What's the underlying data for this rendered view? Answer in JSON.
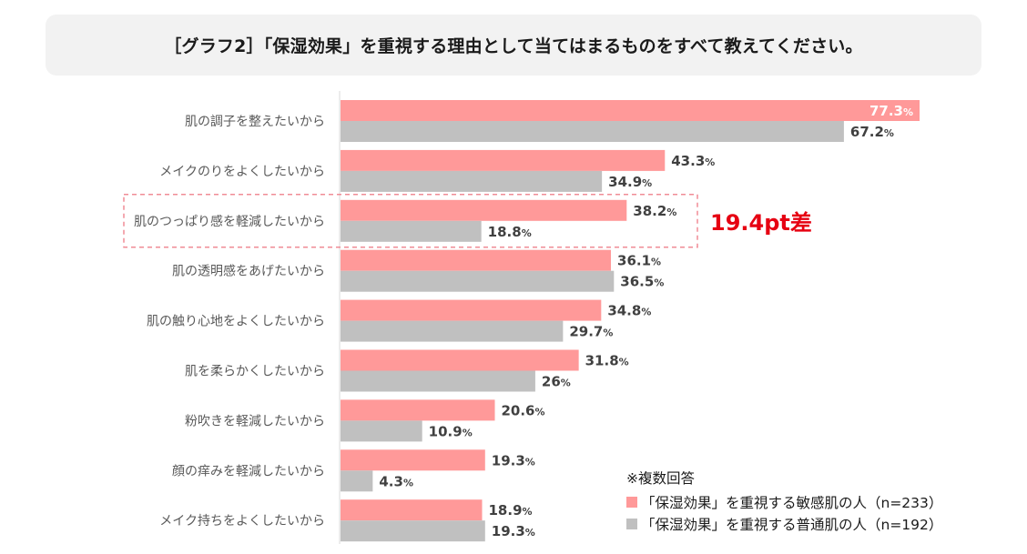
{
  "colors": {
    "sensitive": "#ff9999",
    "normal": "#c0c0c0",
    "highlight_text": "#e60012",
    "highlight_border": "#f08c96",
    "axis": "#d9d9d9",
    "label": "#595959",
    "value": "#404040"
  },
  "chart_data": {
    "type": "bar",
    "orientation": "horizontal",
    "title": "［グラフ2］「保湿効果」を重視する理由として当てはまるものをすべて教えてください。",
    "xlim": [
      0,
      80
    ],
    "value_suffix": "%",
    "categories": [
      "肌の調子を整えたいから",
      "メイクのりをよくしたいから",
      "肌のつっぱり感を軽減したいから",
      "肌の透明感をあげたいから",
      "肌の触り心地をよくしたいから",
      "肌を柔らかくしたいから",
      "粉吹きを軽減したいから",
      "顔の痒みを軽減したいから",
      "メイク持ちをよくしたいから"
    ],
    "series": [
      {
        "name": "「保湿効果」を重視する敏感肌の人（n=233）",
        "labels": [
          "77.3",
          "43.3",
          "38.2",
          "36.1",
          "34.8",
          "31.8",
          "20.6",
          "19.3",
          "18.9"
        ],
        "values": [
          77.3,
          43.3,
          38.2,
          36.1,
          34.8,
          31.8,
          20.6,
          19.3,
          18.9
        ]
      },
      {
        "name": "「保湿効果」を重視する普通肌の人（n=192）",
        "labels": [
          "67.2",
          "34.9",
          "18.8",
          "36.5",
          "29.7",
          "26",
          "10.9",
          "4.3",
          "19.3"
        ],
        "values": [
          67.2,
          34.9,
          18.8,
          36.5,
          29.7,
          26,
          10.9,
          4.3,
          19.3
        ]
      }
    ],
    "annotation": {
      "category_index": 2,
      "text": "19.4pt差"
    },
    "legend_note": "※複数回答",
    "legend_position": "bottom-right"
  }
}
